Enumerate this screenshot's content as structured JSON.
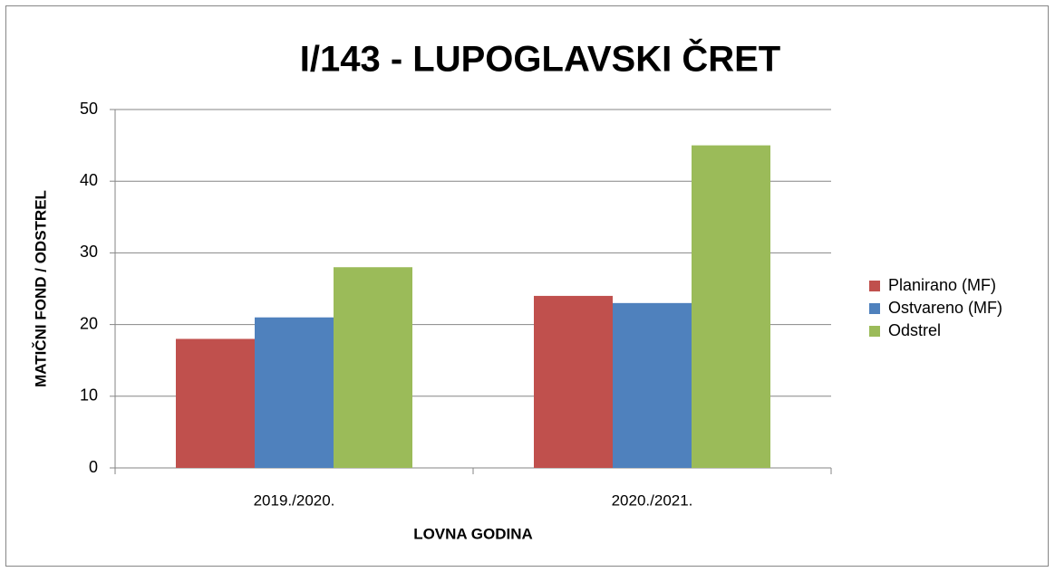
{
  "chart_data": {
    "type": "bar",
    "title": "I/143 - LUPOGLAVSKI ČRET",
    "x_label": "LOVNA GODINA",
    "y_label": "MATIČNI FOND / ODSTREL",
    "categories": [
      "2019./2020.",
      "2020./2021."
    ],
    "series": [
      {
        "name": "Planirano (MF)",
        "color": "#c0504d",
        "values": [
          18,
          24
        ]
      },
      {
        "name": "Ostvareno (MF)",
        "color": "#4f81bd",
        "values": [
          21,
          23
        ]
      },
      {
        "name": "Odstrel",
        "color": "#9bbb59",
        "values": [
          28,
          45
        ]
      }
    ],
    "ylim": [
      0,
      50
    ],
    "yticks": [
      0,
      10,
      20,
      30,
      40,
      50
    ],
    "grid": true,
    "legend": "right"
  }
}
